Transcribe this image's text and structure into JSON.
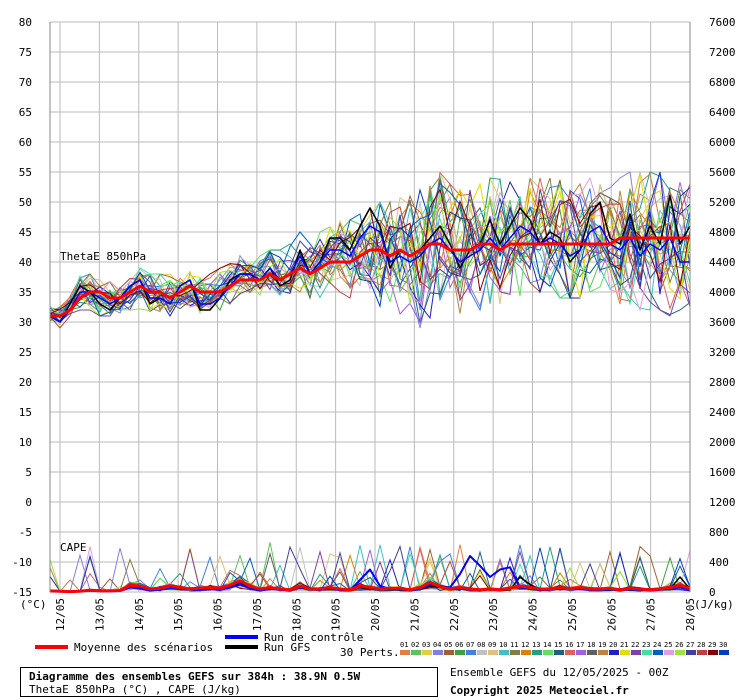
{
  "chart_data": {
    "type": "line",
    "title": "Diagramme des ensembles GEFS sur 384h : 38.9N 0.5W",
    "subtitle": "ThetaE 850hPa (°C) , CAPE (J/kg)",
    "y_left": {
      "unit": "(°C)",
      "ticks": [
        -15,
        -10,
        -5,
        0,
        5,
        10,
        15,
        20,
        25,
        30,
        35,
        40,
        45,
        50,
        55,
        60,
        65,
        70,
        75,
        80
      ],
      "range": [
        -15,
        80
      ]
    },
    "y_right": {
      "unit": "(J/kg)",
      "ticks": [
        0,
        400,
        800,
        1200,
        1600,
        2000,
        2400,
        2800,
        3200,
        3600,
        4000,
        4400,
        4800,
        5200,
        5600,
        6000,
        6400,
        6800,
        7200,
        7600
      ],
      "range": [
        0,
        7600
      ]
    },
    "x_ticks": [
      "12/05",
      "13/05",
      "14/05",
      "15/05",
      "16/05",
      "17/05",
      "18/05",
      "19/05",
      "20/05",
      "21/05",
      "22/05",
      "23/05",
      "24/05",
      "25/05",
      "26/05",
      "27/05",
      "28/05"
    ],
    "grid": true,
    "annotations": [
      "ThetaE 850hPa",
      "CAPE"
    ],
    "thetae": {
      "mean": [
        31,
        31,
        32,
        34,
        35,
        35,
        34,
        34,
        35,
        36,
        35,
        35,
        34,
        35,
        36,
        35,
        35,
        35,
        36,
        37,
        37,
        37,
        38,
        37,
        38,
        39,
        38,
        39,
        40,
        40,
        40,
        41,
        42,
        42,
        41,
        42,
        41,
        42,
        43,
        43,
        42,
        42,
        42,
        43,
        43,
        42,
        43,
        43,
        43,
        43,
        43,
        43,
        43,
        43,
        43,
        43,
        43,
        44,
        44,
        44,
        44,
        44,
        44,
        44,
        44
      ],
      "control": [
        31,
        30,
        32,
        35,
        35,
        34,
        33,
        34,
        36,
        37,
        34,
        34,
        33,
        36,
        37,
        33,
        33,
        34,
        36,
        38,
        38,
        37,
        39,
        37,
        38,
        41,
        38,
        40,
        42,
        42,
        41,
        44,
        46,
        45,
        40,
        41,
        40,
        41,
        43,
        44,
        42,
        40,
        41,
        42,
        44,
        42,
        44,
        46,
        45,
        43,
        44,
        43,
        41,
        42,
        45,
        46,
        43,
        42,
        44,
        41,
        43,
        42,
        44,
        40,
        40
      ],
      "gfs": [
        31,
        30,
        33,
        36,
        35,
        33,
        32,
        34,
        36,
        37,
        33,
        34,
        33,
        36,
        37,
        32,
        32,
        34,
        37,
        38,
        38,
        37,
        39,
        36,
        37,
        42,
        38,
        40,
        44,
        44,
        42,
        46,
        49,
        46,
        39,
        42,
        41,
        42,
        44,
        46,
        43,
        39,
        42,
        43,
        47,
        43,
        46,
        49,
        47,
        43,
        45,
        44,
        40,
        42,
        48,
        50,
        44,
        43,
        48,
        42,
        46,
        43,
        51,
        43,
        46
      ],
      "member_band": {
        "low": [
          30,
          29,
          31,
          32,
          32,
          31,
          31,
          31,
          32,
          32,
          31,
          31,
          31,
          32,
          32,
          31,
          31,
          32,
          33,
          34,
          34,
          34,
          35,
          33,
          34,
          35,
          34,
          34,
          35,
          35,
          34,
          34,
          33,
          32,
          31,
          31,
          30,
          29,
          28,
          29,
          30,
          31,
          32,
          32,
          33,
          33,
          34,
          34,
          35,
          35,
          35,
          34,
          34,
          34,
          35,
          35,
          34,
          33,
          33,
          32,
          32,
          32,
          31,
          32,
          32
        ],
        "high": [
          33,
          33,
          35,
          38,
          38,
          37,
          37,
          37,
          38,
          39,
          38,
          38,
          38,
          38,
          39,
          38,
          38,
          39,
          40,
          41,
          41,
          41,
          42,
          42,
          43,
          45,
          44,
          45,
          46,
          47,
          47,
          48,
          49,
          50,
          50,
          51,
          51,
          52,
          54,
          55,
          53,
          52,
          52,
          53,
          54,
          54,
          54,
          55,
          55,
          54,
          54,
          54,
          53,
          53,
          54,
          55,
          55,
          54,
          55,
          55,
          55,
          55,
          56,
          54,
          53
        ]
      }
    },
    "cape": {
      "mean": [
        15,
        10,
        5,
        10,
        25,
        15,
        15,
        20,
        90,
        80,
        40,
        50,
        80,
        60,
        40,
        50,
        60,
        50,
        90,
        150,
        80,
        40,
        60,
        40,
        30,
        80,
        40,
        40,
        60,
        40,
        30,
        80,
        60,
        40,
        50,
        50,
        30,
        60,
        130,
        70,
        40,
        60,
        40,
        30,
        40,
        30,
        50,
        80,
        60,
        40,
        40,
        60,
        40,
        60,
        40,
        40,
        50,
        30,
        50,
        40,
        30,
        40,
        60,
        90,
        50
      ],
      "control": [
        10,
        5,
        5,
        10,
        20,
        10,
        10,
        15,
        60,
        50,
        20,
        30,
        50,
        40,
        30,
        30,
        40,
        30,
        60,
        100,
        50,
        20,
        40,
        30,
        20,
        60,
        30,
        30,
        40,
        30,
        20,
        160,
        300,
        80,
        40,
        40,
        20,
        40,
        100,
        80,
        60,
        240,
        480,
        350,
        200,
        300,
        330,
        60,
        40,
        30,
        30,
        50,
        30,
        40,
        30,
        30,
        40,
        20,
        40,
        30,
        20,
        30,
        40,
        60,
        30
      ],
      "gfs": [
        10,
        5,
        5,
        10,
        20,
        10,
        10,
        15,
        60,
        50,
        20,
        30,
        50,
        40,
        30,
        30,
        40,
        30,
        60,
        120,
        50,
        20,
        40,
        30,
        20,
        60,
        30,
        30,
        40,
        30,
        20,
        60,
        40,
        30,
        30,
        30,
        20,
        40,
        80,
        60,
        30,
        40,
        30,
        20,
        30,
        20,
        30,
        200,
        100,
        40,
        30,
        40,
        30,
        40,
        30,
        30,
        30,
        20,
        30,
        30,
        20,
        30,
        40,
        200,
        40
      ]
    },
    "legend": {
      "mean": "Moyenne des scénarios",
      "control": "Run de contrôle",
      "gfs": "Run GFS",
      "perts_label": "30 Perts.",
      "perts_numbers": [
        "01",
        "02",
        "03",
        "04",
        "05",
        "06",
        "07",
        "08",
        "09",
        "10",
        "11",
        "12",
        "13",
        "14",
        "15",
        "16",
        "17",
        "18",
        "19",
        "20",
        "21",
        "22",
        "23",
        "24",
        "25",
        "26",
        "27",
        "28",
        "29",
        "30"
      ],
      "perts_colors": [
        "#e08040",
        "#60c060",
        "#e0d040",
        "#8080e0",
        "#a06030",
        "#40a040",
        "#4080e0",
        "#c0c0c0",
        "#e0c080",
        "#40c0c0",
        "#808040",
        "#e08000",
        "#20a080",
        "#60e060",
        "#206080",
        "#e06060",
        "#a060e0",
        "#606060",
        "#c08040",
        "#2020c0",
        "#e0e000",
        "#8040a0",
        "#40e0a0",
        "#0060c0",
        "#e0a0e0",
        "#a0e040",
        "#4040a0",
        "#c04040",
        "#800000",
        "#0040c0"
      ],
      "colors": {
        "mean": "#ff0000",
        "control": "#0000ff",
        "gfs": "#000000"
      }
    }
  },
  "footer": {
    "title": "Diagramme des ensembles GEFS sur 384h : 38.9N 0.5W",
    "subtitle": "ThetaE 850hPa (°C) , CAPE (J/kg)",
    "ensemble": "Ensemble GEFS du 12/05/2025 - 00Z",
    "copyright": "Copyright 2025 Meteociel.fr"
  }
}
